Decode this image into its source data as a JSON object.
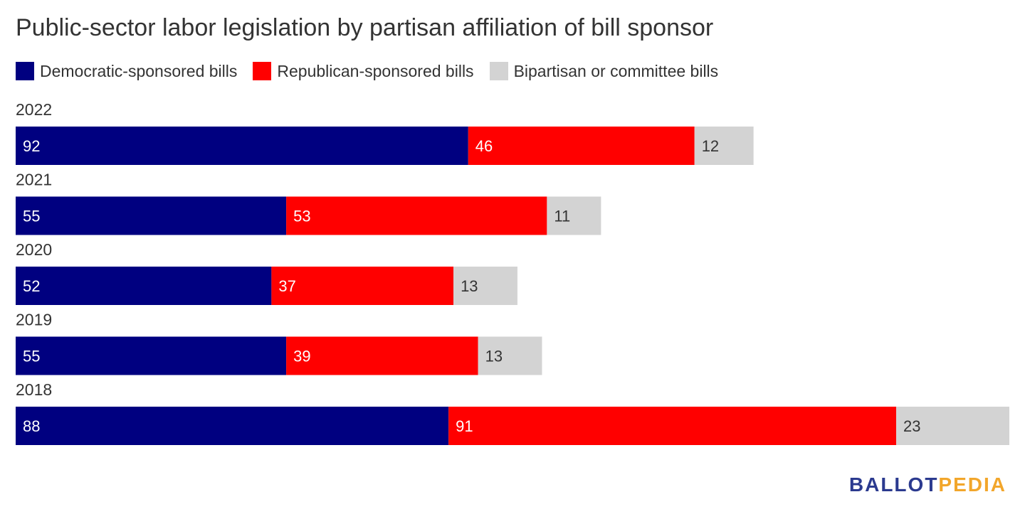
{
  "title": "Public-sector labor legislation by partisan affiliation of bill sponsor",
  "legend": [
    {
      "label": "Democratic-sponsored bills",
      "color": "#000080"
    },
    {
      "label": "Republican-sponsored bills",
      "color": "#ff0000"
    },
    {
      "label": "Bipartisan or committee bills",
      "color": "#d3d3d3"
    }
  ],
  "chart_data": {
    "type": "bar",
    "orientation": "horizontal",
    "stacked": true,
    "title": "Public-sector labor legislation by partisan affiliation of bill sponsor",
    "categories": [
      "2022",
      "2021",
      "2020",
      "2019",
      "2018"
    ],
    "series": [
      {
        "name": "Democratic-sponsored bills",
        "values": [
          92,
          55,
          52,
          55,
          88
        ],
        "color": "#000080",
        "label_color": "#ffffff"
      },
      {
        "name": "Republican-sponsored bills",
        "values": [
          46,
          53,
          37,
          39,
          91
        ],
        "color": "#ff0000",
        "label_color": "#ffffff"
      },
      {
        "name": "Bipartisan or committee bills",
        "values": [
          12,
          11,
          13,
          13,
          23
        ],
        "color": "#d3d3d3",
        "label_color": "#333333"
      }
    ],
    "xlabel": "",
    "ylabel": "",
    "xlim": [
      0,
      202
    ],
    "grid": false,
    "legend_position": "top-left"
  },
  "logo": {
    "part1": "BALLOT",
    "part2": "PEDIA"
  }
}
